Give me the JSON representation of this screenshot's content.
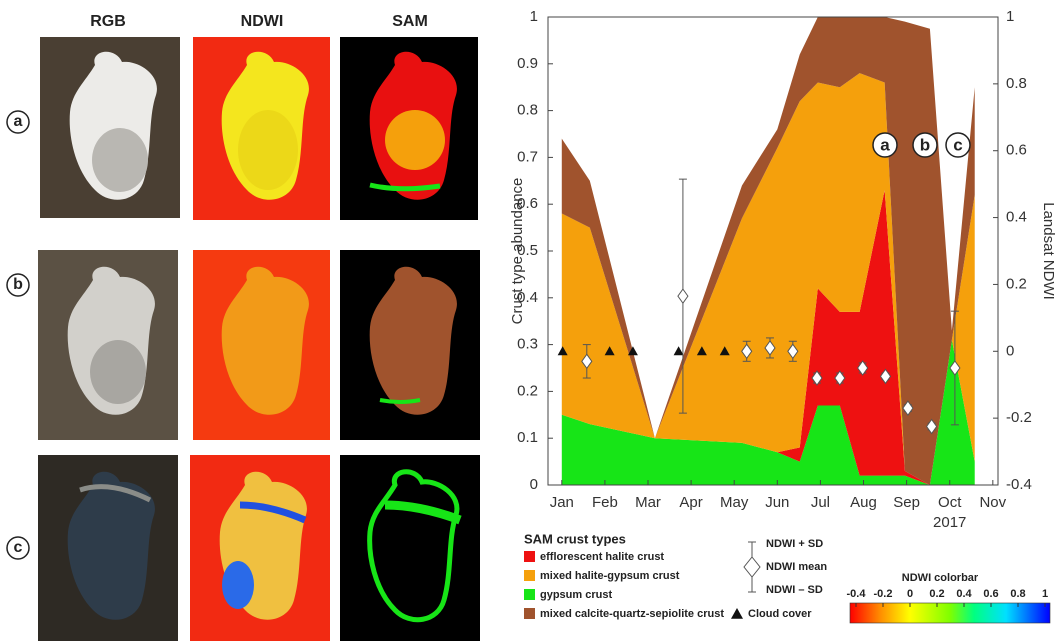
{
  "panels": {
    "columns": [
      "RGB",
      "NDWI",
      "SAM"
    ],
    "rows": [
      "a",
      "b",
      "c"
    ]
  },
  "chart_data": {
    "type": "area",
    "x": [
      1,
      1.65,
      3.16,
      5.18,
      6,
      6.52,
      6.94,
      7.45,
      7.91,
      8.49,
      8.96,
      9.54,
      10.05,
      10.58
    ],
    "xlim": [
      0.68,
      11.12
    ],
    "xticks": [
      {
        "value": 1,
        "label": "Jan"
      },
      {
        "value": 2,
        "label": "Feb"
      },
      {
        "value": 3,
        "label": "Mar"
      },
      {
        "value": 4,
        "label": "Apr"
      },
      {
        "value": 5,
        "label": "May"
      },
      {
        "value": 6,
        "label": "Jun"
      },
      {
        "value": 7,
        "label": "Jul"
      },
      {
        "value": 8,
        "label": "Aug"
      },
      {
        "value": 9,
        "label": "Sep"
      },
      {
        "value": 10,
        "label": "Oct"
      },
      {
        "value": 11,
        "label": "Nov"
      }
    ],
    "year_label": "2017",
    "ylabel": "Crust type abundance",
    "ylim": [
      0,
      1
    ],
    "yticks": [
      0,
      0.1,
      0.2,
      0.3,
      0.4,
      0.5,
      0.6,
      0.7,
      0.8,
      0.9,
      1
    ],
    "y2label": "Landsat NDWI",
    "y2lim": [
      -0.4,
      1
    ],
    "y2ticks": [
      -0.4,
      -0.2,
      0,
      0.2,
      0.4,
      0.6,
      0.8,
      1
    ],
    "legend_title": "SAM crust types",
    "stack_order": [
      2,
      0,
      1,
      3
    ],
    "series": [
      {
        "name": "efflorescent halite crust",
        "color": "#ee1111",
        "values": [
          0,
          0,
          0,
          0,
          0,
          0.03,
          0.25,
          0.2,
          0.35,
          0.61,
          0.01,
          0,
          0,
          0
        ]
      },
      {
        "name": "mixed halite-gypsum crust",
        "color": "#f5a00c",
        "values": [
          0.43,
          0.42,
          0,
          0.48,
          0.65,
          0.74,
          0.44,
          0.48,
          0.51,
          0.23,
          0,
          0,
          0,
          0.57
        ]
      },
      {
        "name": "gypsum crust",
        "color": "#17e517",
        "values": [
          0.15,
          0.13,
          0.1,
          0.09,
          0.07,
          0.05,
          0.17,
          0.17,
          0.02,
          0.02,
          0.02,
          0,
          0.31,
          0.05
        ]
      },
      {
        "name": "mixed calcite-quartz-sepiolite crust",
        "color": "#a0532d",
        "values": [
          0.16,
          0.1,
          0,
          0.07,
          0.04,
          0.1,
          0.14,
          0.15,
          0.12,
          0.14,
          0.96,
          0.975,
          0.02,
          0.23
        ]
      }
    ],
    "ndwi": {
      "name": "NDWI mean",
      "legend_upper": "NDWI + SD",
      "legend_lower": "NDWI – SD",
      "axis": "y2",
      "x": [
        1.58,
        3.81,
        5.29,
        5.83,
        6.36,
        6.92,
        7.45,
        7.98,
        8.51,
        9.03,
        9.58,
        10.12
      ],
      "values": [
        -0.03,
        0.165,
        0,
        0.01,
        0,
        -0.08,
        -0.08,
        -0.05,
        -0.075,
        -0.17,
        -0.225,
        -0.05
      ],
      "sd": [
        0.05,
        0.35,
        0.03,
        0.03,
        0.03,
        0.015,
        0.015,
        0.015,
        0.01,
        0.01,
        0.01,
        0.17
      ]
    },
    "cloud": {
      "name": "Cloud cover",
      "axis": "y2",
      "x": [
        1.02,
        2.11,
        2.65,
        3.71,
        4.25,
        4.78
      ],
      "values": [
        0,
        0,
        0,
        0,
        0,
        0
      ]
    },
    "annotations": [
      "a",
      "b",
      "c"
    ]
  },
  "colorbar": {
    "title": "NDWI colorbar",
    "lim": [
      -0.4,
      1
    ],
    "ticks": [
      -0.4,
      -0.2,
      0,
      0.2,
      0.4,
      0.6,
      0.8,
      1
    ]
  }
}
